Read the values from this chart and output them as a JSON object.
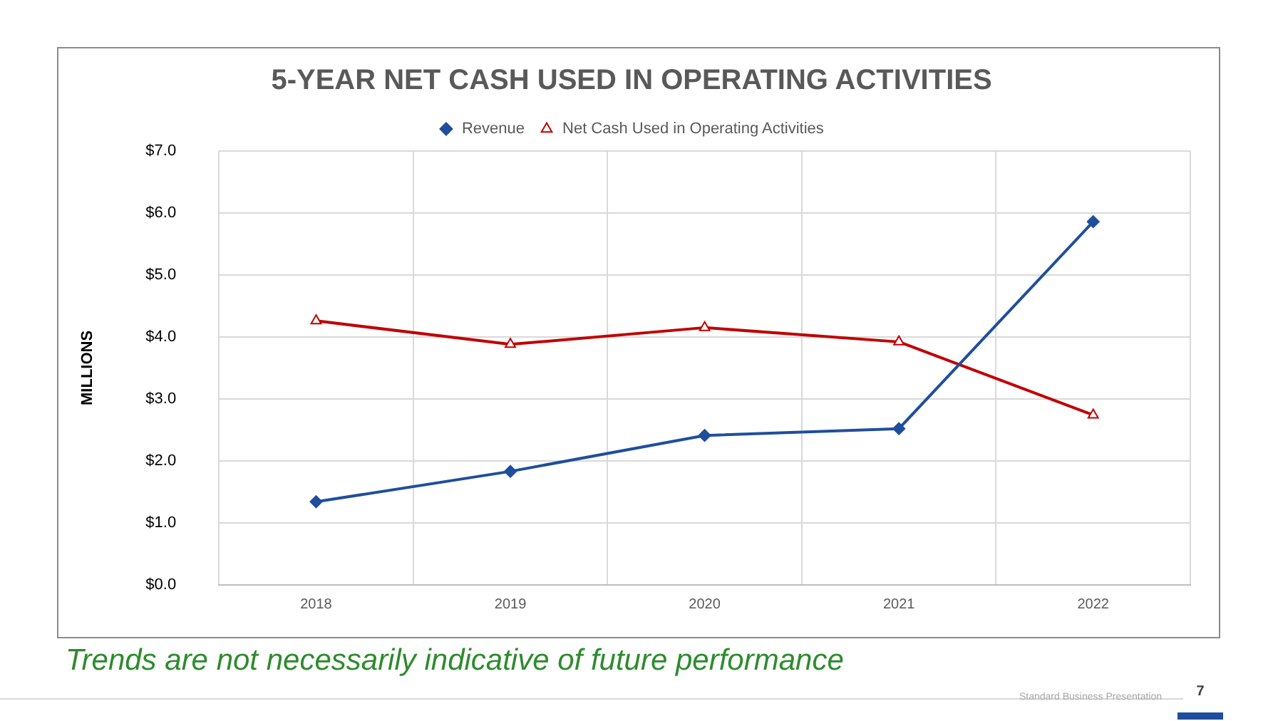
{
  "chart_data": {
    "type": "line",
    "title": "5-YEAR NET CASH USED IN OPERATING ACTIVITIES",
    "ylabel": "MILLIONS",
    "categories": [
      "2018",
      "2019",
      "2020",
      "2021",
      "2022"
    ],
    "series": [
      {
        "name": "Revenue",
        "color": "#1f4e9c",
        "marker": "diamond",
        "values": [
          1.34,
          1.83,
          2.41,
          2.52,
          5.86
        ]
      },
      {
        "name": "Net Cash Used in Operating Activities",
        "color": "#c00000",
        "marker": "triangle",
        "values": [
          4.26,
          3.88,
          4.15,
          3.92,
          2.74
        ]
      }
    ],
    "ylim": [
      0,
      7
    ],
    "yticks": [
      {
        "value": 0,
        "label": "$0.0"
      },
      {
        "value": 1,
        "label": "$1.0"
      },
      {
        "value": 2,
        "label": "$2.0"
      },
      {
        "value": 3,
        "label": "$3.0"
      },
      {
        "value": 4,
        "label": "$4.0"
      },
      {
        "value": 5,
        "label": "$5.0"
      },
      {
        "value": 6,
        "label": "$6.0"
      },
      {
        "value": 7,
        "label": "$7.0"
      }
    ],
    "grid": true,
    "legend": "top",
    "line_style": "solid",
    "annotations": [
      "Trends are not necessarily indicative of future performance",
      "Standard Business Presentation",
      "7"
    ]
  }
}
